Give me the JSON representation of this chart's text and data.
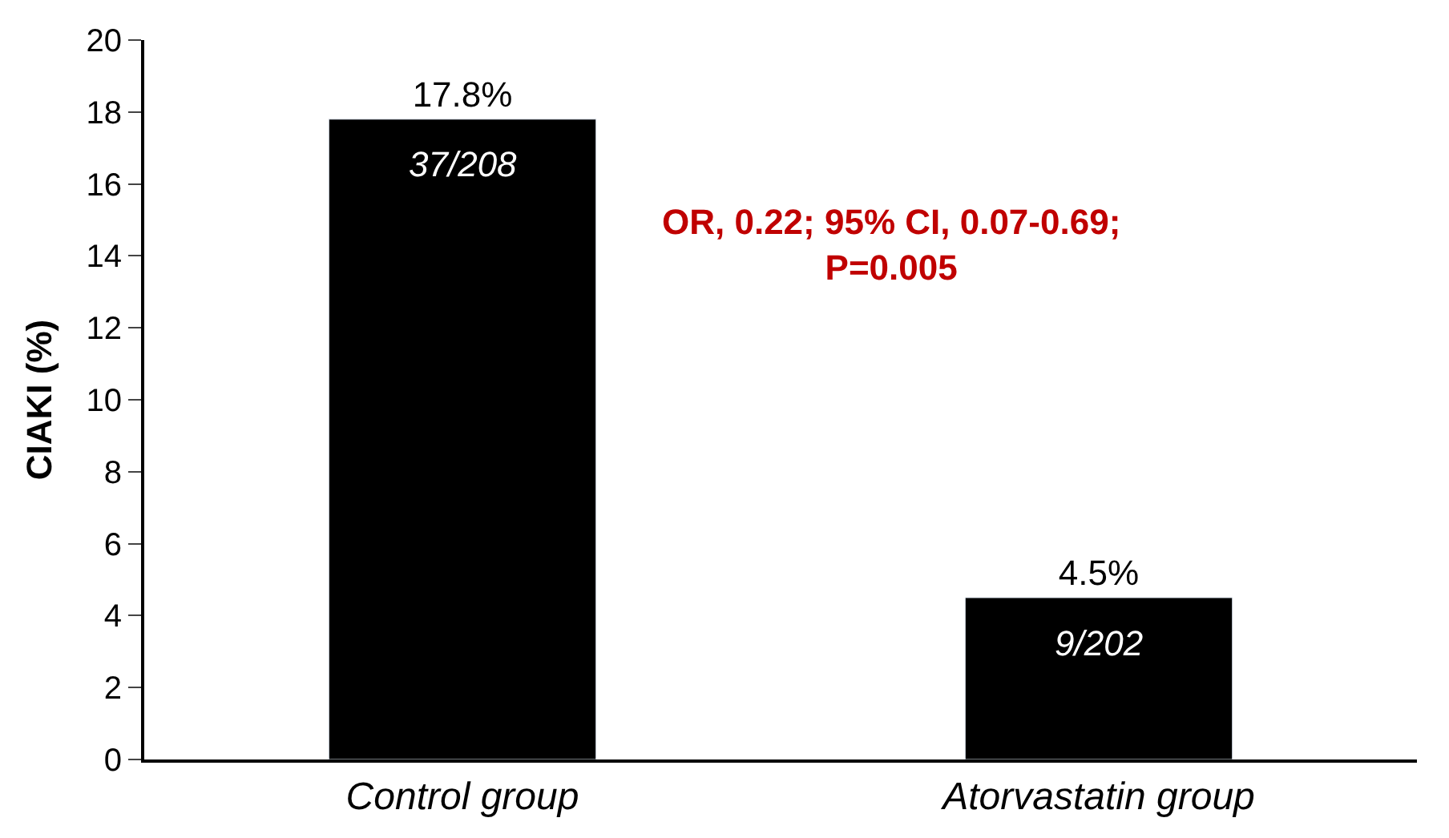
{
  "chart_data": {
    "type": "bar",
    "ylabel": "CIAKI (%)",
    "categories": [
      "Control group",
      "Atorvastatin group"
    ],
    "values": [
      17.8,
      4.5
    ],
    "color": "#000000",
    "value_labels": [
      "17.8%",
      "4.5%"
    ],
    "ylim": [
      0,
      20
    ],
    "yticks": [
      0,
      2,
      4,
      6,
      8,
      10,
      12,
      14,
      16,
      18,
      20
    ],
    "annotations": [
      "37/208",
      "9/202",
      "OR, 0.22; 95% CI, 0.07-0.69; P=0.005"
    ]
  }
}
